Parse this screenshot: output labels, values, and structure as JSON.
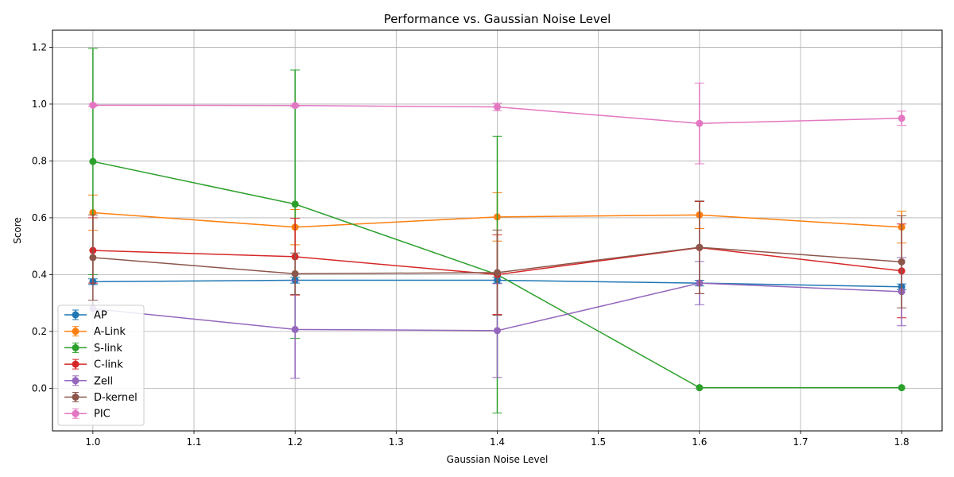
{
  "chart_data": {
    "type": "line",
    "title": "Performance vs. Gaussian Noise Level",
    "xlabel": "Gaussian Noise Level",
    "ylabel": "Score",
    "x": [
      1.0,
      1.2,
      1.4,
      1.6,
      1.8
    ],
    "xlim": [
      0.96,
      1.84
    ],
    "ylim": [
      -0.15,
      1.26
    ],
    "xticks": [
      "1.0",
      "1.1",
      "1.2",
      "1.3",
      "1.4",
      "1.5",
      "1.6",
      "1.7",
      "1.8"
    ],
    "xtick_values": [
      1.0,
      1.1,
      1.2,
      1.3,
      1.4,
      1.5,
      1.6,
      1.7,
      1.8
    ],
    "yticks": [
      "0.0",
      "0.2",
      "0.4",
      "0.6",
      "0.8",
      "1.0",
      "1.2"
    ],
    "ytick_values": [
      0.0,
      0.2,
      0.4,
      0.6,
      0.8,
      1.0,
      1.2
    ],
    "grid": true,
    "legend_position": "lower-left",
    "series": [
      {
        "name": "AP",
        "color": "#1f77b4",
        "values": [
          0.375,
          0.38,
          0.38,
          0.37,
          0.357
        ],
        "errors": [
          0.01,
          0.01,
          0.01,
          0.01,
          0.01
        ]
      },
      {
        "name": "A-Link",
        "color": "#ff7f0e",
        "values": [
          0.618,
          0.567,
          0.603,
          0.61,
          0.567
        ],
        "errors": [
          0.062,
          0.062,
          0.085,
          0.048,
          0.056
        ]
      },
      {
        "name": "S-link",
        "color": "#2ca02c",
        "values": [
          0.798,
          0.648,
          0.4,
          0.002,
          0.002
        ],
        "errors": [
          0.398,
          0.472,
          0.487,
          0.0,
          0.0
        ]
      },
      {
        "name": "C-link",
        "color": "#d62728",
        "values": [
          0.485,
          0.463,
          0.4,
          0.495,
          0.413
        ],
        "errors": [
          0.115,
          0.135,
          0.14,
          0.162,
          0.165
        ]
      },
      {
        "name": "Zell",
        "color": "#9467bd",
        "values": [
          0.28,
          0.207,
          0.203,
          0.37,
          0.34
        ],
        "errors": [
          0.0,
          0.172,
          0.165,
          0.076,
          0.12
        ]
      },
      {
        "name": "D-kernel",
        "color": "#8c564b",
        "values": [
          0.46,
          0.403,
          0.407,
          0.496,
          0.445
        ],
        "errors": [
          0.15,
          0.073,
          0.15,
          0.163,
          0.162
        ]
      },
      {
        "name": "PIC",
        "color": "#e377c2",
        "values": [
          0.996,
          0.995,
          0.99,
          0.932,
          0.95
        ],
        "errors": [
          0.004,
          0.005,
          0.013,
          0.142,
          0.025
        ]
      }
    ]
  }
}
